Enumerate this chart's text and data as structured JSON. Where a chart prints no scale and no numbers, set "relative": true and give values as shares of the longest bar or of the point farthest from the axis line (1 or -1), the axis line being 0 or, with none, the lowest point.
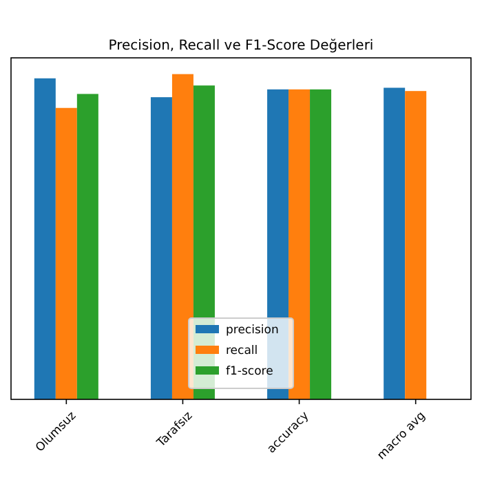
{
  "chart_data": {
    "type": "bar",
    "title": "Precision, Recall ve F1-Score Değerleri",
    "relative": true,
    "categories": [
      "Olumsuz",
      "Tarafsız",
      "accuracy",
      "macro avg"
    ],
    "series": [
      {
        "name": "precision",
        "color": "#1f77b4",
        "values": [
          0.987,
          0.929,
          0.953,
          0.958
        ]
      },
      {
        "name": "recall",
        "color": "#ff7f0e",
        "values": [
          0.896,
          1,
          0.953,
          0.948
        ]
      },
      {
        "name": "f1-score",
        "color": "#2ca02c",
        "values": [
          0.939,
          0.965,
          0.953,
          null
        ]
      }
    ],
    "legend": "bottom"
  }
}
